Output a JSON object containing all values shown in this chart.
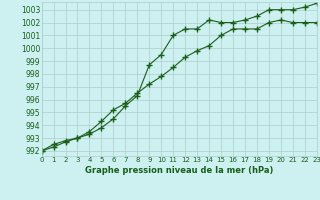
{
  "title": "Graphe pression niveau de la mer (hPa)",
  "bg_color": "#cdf0f0",
  "grid_color": "#b0cccc",
  "line_color": "#1a5e1a",
  "x_values": [
    0,
    1,
    2,
    3,
    4,
    5,
    6,
    7,
    8,
    9,
    10,
    11,
    12,
    13,
    14,
    15,
    16,
    17,
    18,
    19,
    20,
    21,
    22,
    23
  ],
  "series1": [
    992.0,
    992.5,
    992.8,
    993.0,
    993.5,
    994.3,
    995.2,
    995.7,
    996.5,
    997.2,
    997.8,
    998.5,
    999.3,
    999.8,
    1000.2,
    1001.0,
    1001.5,
    1001.5,
    1001.5,
    1002.0,
    1002.2,
    1002.0,
    1002.0,
    1002.0
  ],
  "series2": [
    992.0,
    992.3,
    992.7,
    993.0,
    993.3,
    993.8,
    994.5,
    995.5,
    996.3,
    998.7,
    999.5,
    1001.0,
    1001.5,
    1001.5,
    1002.2,
    1002.0,
    1002.0,
    1002.2,
    1002.5,
    1003.0,
    1003.0,
    1003.0,
    1003.2,
    1003.5
  ],
  "ylim": [
    991.6,
    1003.6
  ],
  "yticks": [
    992,
    993,
    994,
    995,
    996,
    997,
    998,
    999,
    1000,
    1001,
    1002,
    1003
  ],
  "xlim": [
    0,
    23
  ],
  "figsize": [
    3.2,
    2.0
  ],
  "dpi": 100
}
